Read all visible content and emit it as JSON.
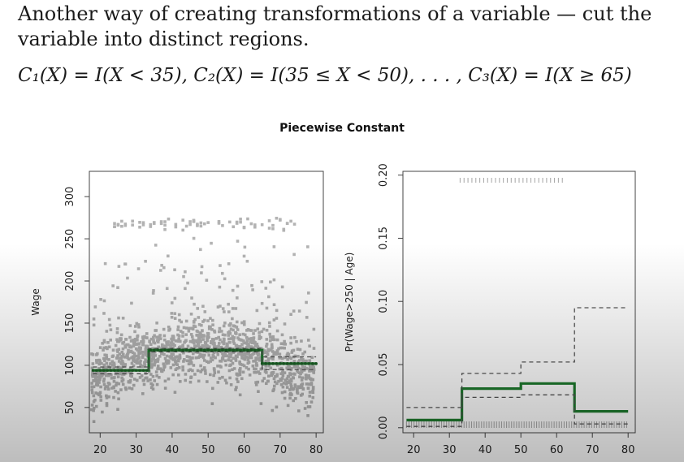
{
  "text": {
    "intro": "Another way of creating transformations of a variable — cut the variable into distinct regions.",
    "formula": "C₁(X) = I(X < 35),   C₂(X) = I(35 ≤ X < 50), . . . , C₃(X) = I(X ≥ 65)"
  },
  "figure_title": "Piecewise Constant",
  "chart_data": [
    {
      "type": "scatter",
      "title": "",
      "xlabel": "",
      "ylabel": "Wage",
      "xlim": [
        17,
        82
      ],
      "ylim": [
        20,
        330
      ],
      "xticks": [
        20,
        30,
        40,
        50,
        60,
        70,
        80
      ],
      "yticks": [
        50,
        100,
        150,
        200,
        250,
        300
      ],
      "points_color": "#9a9a9a",
      "fit_color": "#1e7b2e",
      "series": [
        {
          "kind": "step-fit",
          "x": [
            18,
            33.5,
            33.5,
            65,
            65,
            80
          ],
          "y": [
            94,
            94,
            118,
            118,
            102,
            102
          ]
        },
        {
          "kind": "band-upper",
          "x": [
            18,
            33.5,
            33.5,
            65,
            65,
            80
          ],
          "y": [
            98,
            98,
            120,
            120,
            110,
            110
          ]
        },
        {
          "kind": "band-lower",
          "x": [
            18,
            33.5,
            33.5,
            65,
            65,
            80
          ],
          "y": [
            90,
            90,
            116,
            116,
            95,
            95
          ]
        }
      ]
    },
    {
      "type": "line",
      "title": "",
      "xlabel": "",
      "ylabel": "Pr(Wage>250 | Age)",
      "xlim": [
        17,
        82
      ],
      "ylim": [
        -0.004,
        0.203
      ],
      "xticks": [
        20,
        30,
        40,
        50,
        60,
        70,
        80
      ],
      "yticks": [
        0.0,
        0.05,
        0.1,
        0.15,
        0.2
      ],
      "ytick_labels": [
        "0.00",
        "0.05",
        "0.10",
        "0.15",
        "0.20"
      ],
      "fit_color": "#1e7b2e",
      "series": [
        {
          "kind": "step-fit",
          "x": [
            18,
            33.5,
            33.5,
            50,
            50,
            65,
            65,
            80
          ],
          "y": [
            0.006,
            0.006,
            0.031,
            0.031,
            0.035,
            0.035,
            0.013,
            0.013
          ]
        },
        {
          "kind": "band-upper",
          "x": [
            18,
            33.5,
            33.5,
            50,
            50,
            65,
            65,
            80
          ],
          "y": [
            0.016,
            0.016,
            0.043,
            0.043,
            0.052,
            0.052,
            0.095,
            0.095
          ]
        },
        {
          "kind": "band-lower",
          "x": [
            18,
            33.5,
            33.5,
            50,
            50,
            65,
            65,
            80
          ],
          "y": [
            0.001,
            0.001,
            0.024,
            0.024,
            0.026,
            0.026,
            0.003,
            0.003
          ]
        }
      ]
    }
  ]
}
